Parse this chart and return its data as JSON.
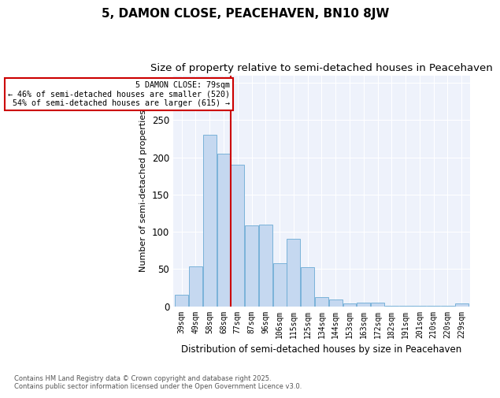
{
  "title": "5, DAMON CLOSE, PEACEHAVEN, BN10 8JW",
  "subtitle": "Size of property relative to semi-detached houses in Peacehaven",
  "xlabel": "Distribution of semi-detached houses by size in Peacehaven",
  "ylabel": "Number of semi-detached properties",
  "categories": [
    "39sqm",
    "49sqm",
    "58sqm",
    "68sqm",
    "77sqm",
    "87sqm",
    "96sqm",
    "106sqm",
    "115sqm",
    "125sqm",
    "134sqm",
    "144sqm",
    "153sqm",
    "163sqm",
    "172sqm",
    "182sqm",
    "191sqm",
    "201sqm",
    "210sqm",
    "220sqm",
    "229sqm"
  ],
  "values": [
    15,
    53,
    230,
    205,
    190,
    108,
    110,
    58,
    90,
    52,
    12,
    9,
    4,
    5,
    5,
    1,
    1,
    1,
    1,
    1,
    4
  ],
  "bar_color": "#c5d8f0",
  "bar_edge_color": "#6aaad4",
  "marker_line_index": 4,
  "annotation_title": "5 DAMON CLOSE: 79sqm",
  "annotation_line1": "← 46% of semi-detached houses are smaller (520)",
  "annotation_line2": "54% of semi-detached houses are larger (615) →",
  "annotation_box_color": "#ffffff",
  "annotation_box_edge": "#cc0000",
  "marker_line_color": "#cc0000",
  "footnote1": "Contains HM Land Registry data © Crown copyright and database right 2025.",
  "footnote2": "Contains public sector information licensed under the Open Government Licence v3.0.",
  "ylim": [
    0,
    310
  ],
  "yticks": [
    0,
    50,
    100,
    150,
    200,
    250,
    300
  ],
  "bg_color": "#eef2fb",
  "title_fontsize": 11,
  "subtitle_fontsize": 9.5
}
